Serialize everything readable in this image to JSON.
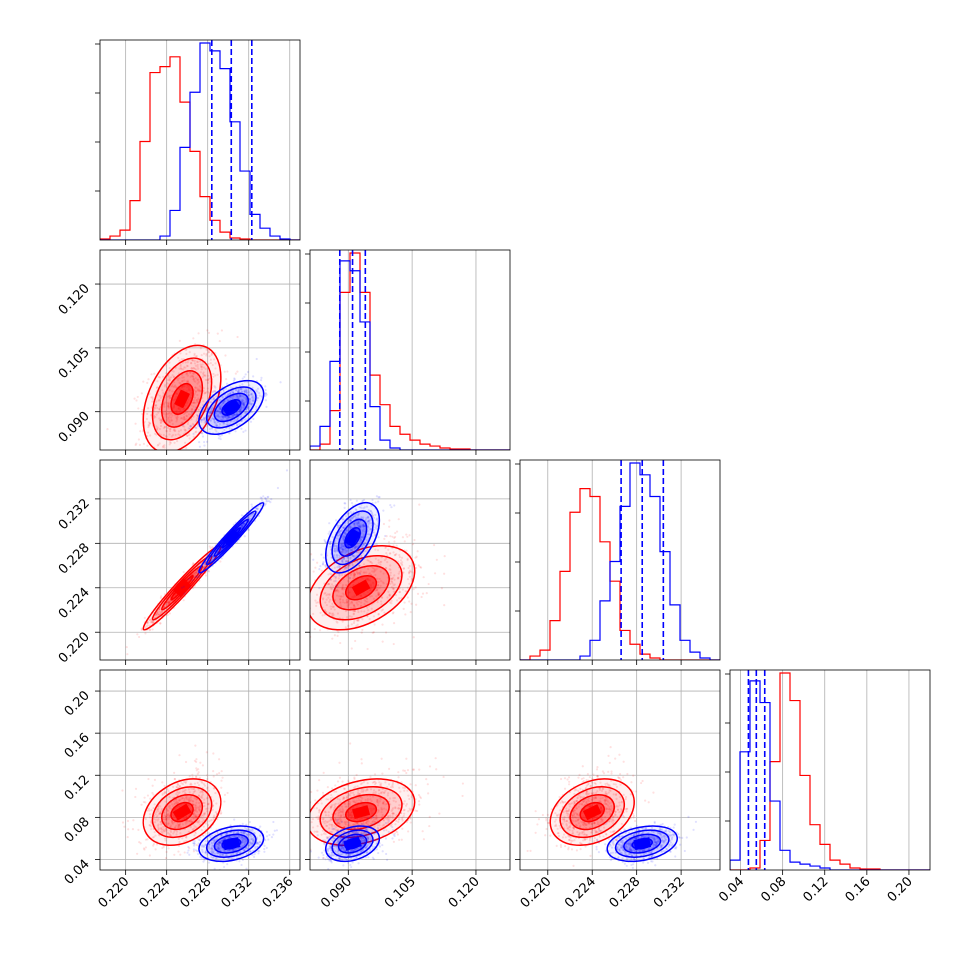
{
  "chart_data": {
    "type": "corner",
    "title": "",
    "grid": true,
    "series": [
      {
        "color": "#ff0000",
        "means": [
          0.2255,
          0.093,
          0.224,
          0.085
        ],
        "sds": [
          0.0018,
          0.006,
          0.0018,
          0.015
        ],
        "corr": {
          "0-1": 0.4,
          "0-2": 0.97,
          "0-3": 0.3,
          "1-2": 0.4,
          "1-3": 0.3,
          "2-3": 0.3
        }
      },
      {
        "color": "#0000ff",
        "means": [
          0.2303,
          0.091,
          0.2285,
          0.055
        ],
        "sds": [
          0.0015,
          0.003,
          0.0015,
          0.008
        ],
        "corr": {
          "0-1": 0.5,
          "0-2": 0.97,
          "0-3": 0.3,
          "1-2": 0.5,
          "1-3": 0.3,
          "2-3": 0.3
        }
      }
    ],
    "quantile_lines": {
      "color": "#0000ff",
      "style": "dashed",
      "values": [
        [
          0.2284,
          0.2303,
          0.2323
        ],
        [
          0.088,
          0.091,
          0.094
        ],
        [
          0.2266,
          0.2285,
          0.2304
        ],
        [
          0.0475,
          0.055,
          0.063
        ]
      ]
    },
    "params": [
      {
        "range": [
          0.2175,
          0.237
        ],
        "ticks": [
          "0.220",
          "0.224",
          "0.228",
          "0.232",
          "0.236"
        ],
        "tickvals": [
          0.22,
          0.224,
          0.228,
          0.232,
          0.236
        ]
      },
      {
        "range": [
          0.081,
          0.128
        ],
        "ticks": [
          "0.090",
          "0.105",
          "0.120"
        ],
        "tickvals": [
          0.09,
          0.105,
          0.12
        ]
      },
      {
        "range": [
          0.2175,
          0.2355
        ],
        "ticks": [
          "0.220",
          "0.224",
          "0.228",
          "0.232"
        ],
        "tickvals": [
          0.22,
          0.224,
          0.228,
          0.232
        ]
      },
      {
        "range": [
          0.03,
          0.22
        ],
        "ticks": [
          "0.04",
          "0.08",
          "0.12",
          "0.16",
          "0.20"
        ],
        "tickvals": [
          0.04,
          0.08,
          0.12,
          0.16,
          0.2
        ]
      }
    ],
    "histograms": [
      {
        "bins": 20,
        "red": [
          0.005,
          0.02,
          0.05,
          0.2,
          0.5,
          0.85,
          0.88,
          0.93,
          0.7,
          0.45,
          0.22,
          0.1,
          0.04,
          0.01,
          0.005,
          0,
          0,
          0,
          0,
          0
        ],
        "blue": [
          0,
          0,
          0,
          0,
          0,
          0,
          0.02,
          0.15,
          0.47,
          0.75,
          1.0,
          0.96,
          0.87,
          0.6,
          0.35,
          0.13,
          0.06,
          0.02,
          0.005,
          0
        ]
      },
      {
        "bins": 20,
        "red": [
          0,
          0.03,
          0.2,
          0.8,
          1.0,
          0.8,
          0.38,
          0.23,
          0.12,
          0.08,
          0.05,
          0.03,
          0.02,
          0.01,
          0.005,
          0.005,
          0,
          0,
          0,
          0
        ],
        "blue": [
          0.02,
          0.12,
          0.45,
          0.96,
          0.91,
          0.65,
          0.22,
          0.05,
          0.01,
          0,
          0,
          0,
          0,
          0,
          0,
          0,
          0,
          0,
          0,
          0
        ]
      },
      {
        "bins": 20,
        "red": [
          0,
          0.02,
          0.05,
          0.2,
          0.45,
          0.75,
          0.87,
          0.83,
          0.6,
          0.4,
          0.15,
          0.08,
          0.03,
          0.01,
          0,
          0,
          0,
          0,
          0,
          0
        ],
        "blue": [
          0,
          0,
          0,
          0,
          0,
          0,
          0.02,
          0.1,
          0.3,
          0.5,
          0.78,
          1.0,
          0.94,
          0.83,
          0.55,
          0.28,
          0.1,
          0.04,
          0.01,
          0
        ]
      },
      {
        "bins": 20,
        "red": [
          0,
          0,
          0.01,
          0.15,
          0.55,
          1.0,
          0.86,
          0.48,
          0.23,
          0.13,
          0.05,
          0.03,
          0.01,
          0.005,
          0.005,
          0,
          0,
          0,
          0,
          0
        ],
        "blue": [
          0.05,
          0.6,
          0.96,
          0.85,
          0.35,
          0.1,
          0.04,
          0.03,
          0.02,
          0.01,
          0,
          0,
          0,
          0,
          0,
          0,
          0,
          0,
          0,
          0
        ]
      }
    ]
  }
}
